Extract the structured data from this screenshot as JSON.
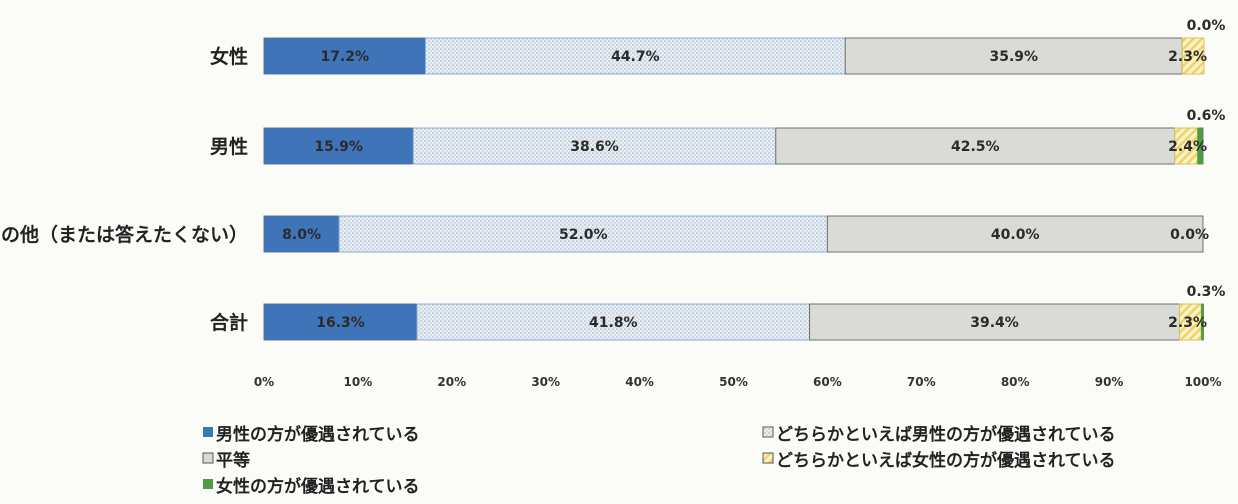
{
  "chart_data": {
    "type": "bar",
    "orientation": "horizontal",
    "stacked": true,
    "percent_stacked": true,
    "categories": [
      "女性",
      "男性",
      "その他（または答えたくない）",
      "合計"
    ],
    "series": [
      {
        "name": "男性の方が優遇されている",
        "values": [
          17.2,
          15.9,
          8.0,
          16.3
        ],
        "labels": [
          "17.2%",
          "15.9%",
          "8.0%",
          "16.3%"
        ],
        "color": "#3f74b9",
        "fill": "solid"
      },
      {
        "name": "どちらかといえば男性の方が優遇されている",
        "values": [
          44.7,
          38.6,
          52.0,
          41.8
        ],
        "labels": [
          "44.7%",
          "38.6%",
          "52.0%",
          "41.8%"
        ],
        "color": "#dfe7f0",
        "fill": "dotted"
      },
      {
        "name": "平等",
        "values": [
          35.9,
          42.5,
          40.0,
          39.4
        ],
        "labels": [
          "35.9%",
          "42.5%",
          "40.0%",
          "39.4%"
        ],
        "color": "#dadad6",
        "fill": "solid"
      },
      {
        "name": "どちらかといえば女性の方が優遇されている",
        "values": [
          2.3,
          2.4,
          0.0,
          2.3
        ],
        "labels": [
          "2.3%",
          "2.4%",
          "0.0%",
          "2.3%"
        ],
        "color": "#f3e18a",
        "fill": "hatched"
      },
      {
        "name": "女性の方が優遇されている",
        "values": [
          0.0,
          0.6,
          0.0,
          0.3
        ],
        "labels": [
          "0.0%",
          "0.6%",
          "",
          "0.3%"
        ],
        "color": "#4c9b46",
        "fill": "solid"
      }
    ],
    "xlim": [
      0,
      100
    ],
    "x_ticks": [
      "0%",
      "10%",
      "20%",
      "30%",
      "40%",
      "50%",
      "60%",
      "70%",
      "80%",
      "90%",
      "100%"
    ],
    "grid": false,
    "legend_position": "bottom",
    "title": "",
    "xlabel": "",
    "ylabel": ""
  }
}
